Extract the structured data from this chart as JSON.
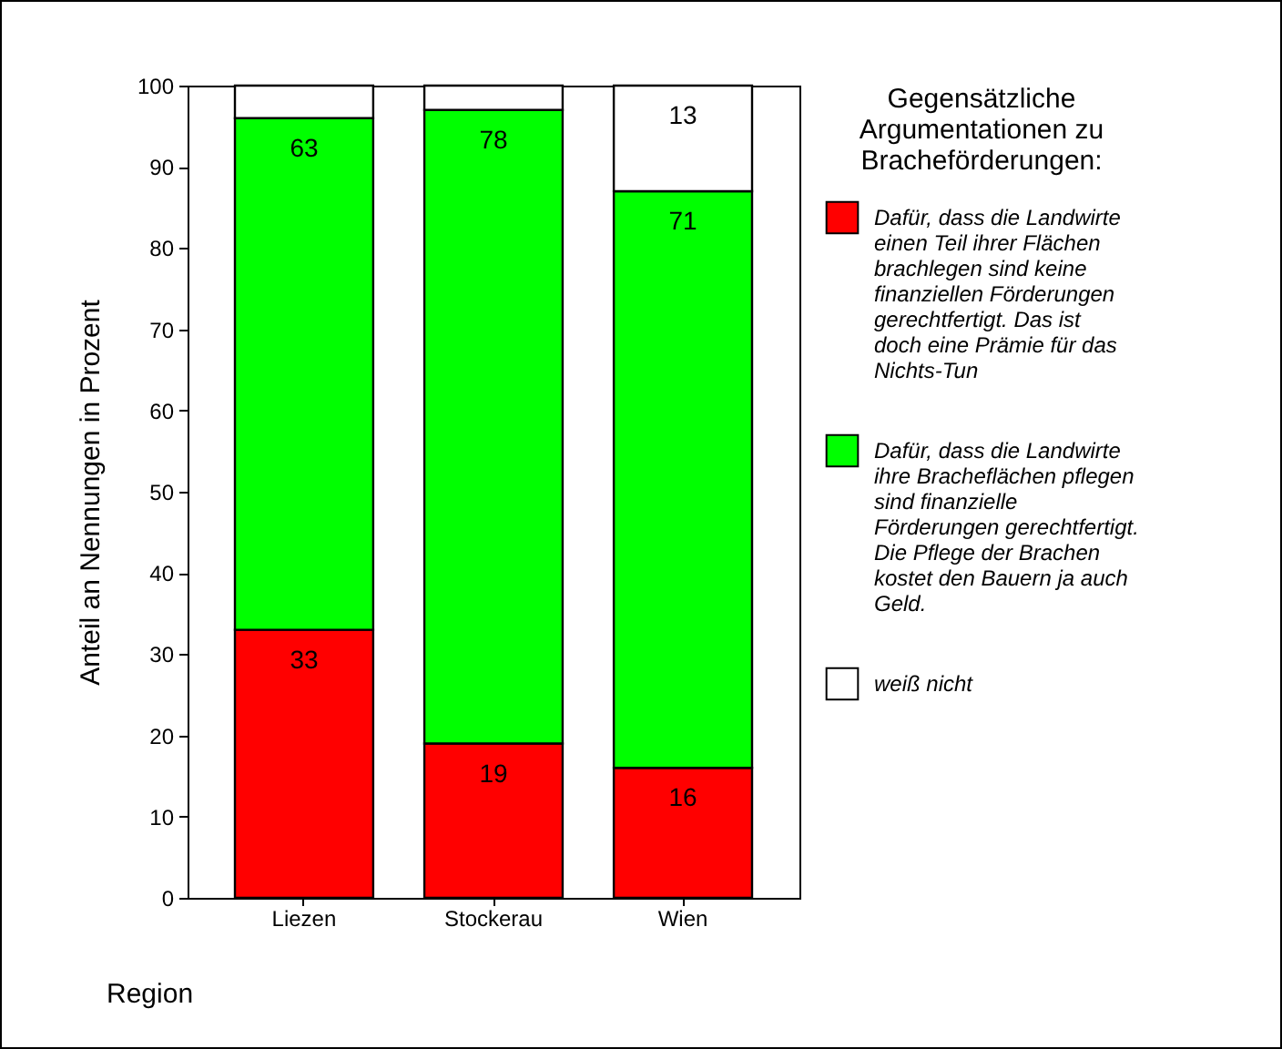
{
  "chart_data": {
    "type": "bar",
    "stacked": true,
    "xlabel": "Region",
    "ylabel": "Anteil an Nennungen in Prozent",
    "legend_title": "Gegensätzliche Argumentationen zu Bracheförderungen:",
    "legend": "right",
    "grid": false,
    "categories": [
      "Liezen",
      "Stockerau",
      "Wien"
    ],
    "ylim": [
      0,
      100
    ],
    "yticks": [
      0,
      10,
      20,
      30,
      40,
      50,
      60,
      70,
      80,
      90,
      100
    ],
    "series": [
      {
        "name": "Dafür, dass die Landwirte einen Teil ihrer Flächen brachlegen sind keine finanziellen Förderungen gerechtfertigt. Das ist doch eine Prämie für das Nichts-Tun",
        "color": "#ff0000",
        "values": [
          33,
          19,
          16
        ],
        "value_labels": [
          "33",
          "19",
          "16"
        ]
      },
      {
        "name": "Dafür, dass die Landwirte ihre Bracheflächen pflegen sind finanzielle Förderungen gerechtfertigt. Die Pflege der Brachen kostet den Bauern ja auch Geld.",
        "color": "#00ff00",
        "values": [
          63,
          78,
          71
        ],
        "value_labels": [
          "63",
          "78",
          "71"
        ]
      },
      {
        "name": "weiß nicht",
        "color": "#ffffff",
        "values": [
          4,
          3,
          13
        ],
        "value_labels": [
          null,
          null,
          "13"
        ]
      }
    ]
  }
}
